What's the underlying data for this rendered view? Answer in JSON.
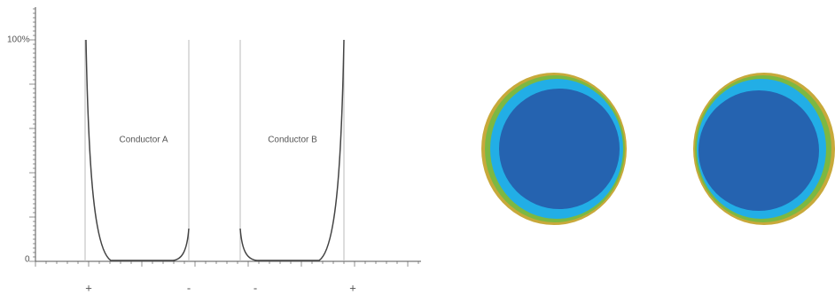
{
  "axis": {
    "top_label": "100%",
    "bottom_label": "0"
  },
  "conductors": [
    {
      "label": "Conductor A"
    },
    {
      "label": "Conductor B"
    }
  ],
  "polarity": [
    "+",
    "-",
    "-",
    "+"
  ]
}
